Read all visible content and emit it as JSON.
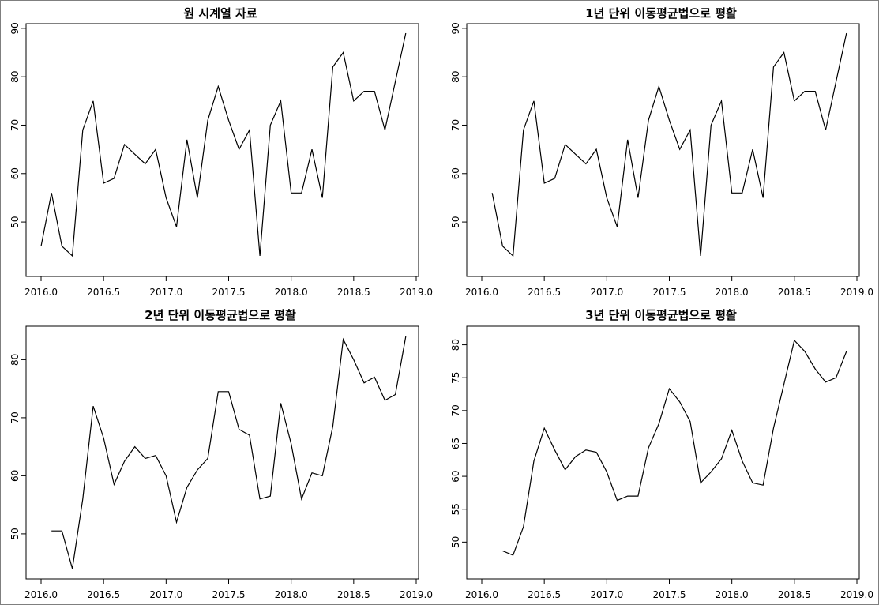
{
  "chart_data": [
    {
      "type": "line",
      "title": "원 시계열 자료",
      "x_start": 2016.0,
      "x_step": 0.08333,
      "values": [
        45,
        56,
        45,
        43,
        69,
        75,
        58,
        59,
        66,
        64,
        62,
        65,
        55,
        49,
        67,
        55,
        71,
        78,
        71,
        65,
        69,
        43,
        70,
        75,
        56,
        56,
        65,
        55,
        82,
        85,
        75,
        77,
        77,
        69,
        79,
        89
      ],
      "xlim": [
        2016.0,
        2019.0
      ],
      "ylim": [
        43,
        89
      ],
      "xticks": [
        2016.0,
        2016.5,
        2017.0,
        2017.5,
        2018.0,
        2018.5,
        2019.0
      ],
      "xtick_labels": [
        "2016.0",
        "2016.5",
        "2017.0",
        "2017.5",
        "2018.0",
        "2018.5",
        "2019.0"
      ],
      "yticks": [
        50,
        60,
        70,
        80,
        90
      ],
      "ytick_labels": [
        "50",
        "60",
        "70",
        "80",
        "90"
      ]
    },
    {
      "type": "line",
      "title": "1년 단위 이동평균법으로 평활",
      "x_start": 2016.08333,
      "x_step": 0.08333,
      "values": [
        56,
        45,
        43,
        69,
        75,
        58,
        59,
        66,
        64,
        62,
        65,
        55,
        49,
        67,
        55,
        71,
        78,
        71,
        65,
        69,
        43,
        70,
        75,
        56,
        56,
        65,
        55,
        82,
        85,
        75,
        77,
        77,
        69,
        79,
        89
      ],
      "xlim": [
        2016.0,
        2019.0
      ],
      "ylim": [
        43,
        89
      ],
      "xticks": [
        2016.0,
        2016.5,
        2017.0,
        2017.5,
        2018.0,
        2018.5,
        2019.0
      ],
      "xtick_labels": [
        "2016.0",
        "2016.5",
        "2017.0",
        "2017.5",
        "2018.0",
        "2018.5",
        "2019.0"
      ],
      "yticks": [
        50,
        60,
        70,
        80,
        90
      ],
      "ytick_labels": [
        "50",
        "60",
        "70",
        "80",
        "90"
      ]
    },
    {
      "type": "line",
      "title": "2년 단위 이동평균법으로 평활",
      "x_start": 2016.08333,
      "x_step": 0.08333,
      "values": [
        50.5,
        50.5,
        44,
        56,
        72,
        66.5,
        58.5,
        62.5,
        65,
        63,
        63.5,
        60,
        52,
        58,
        61,
        63,
        74.5,
        74.5,
        68,
        67,
        56,
        56.5,
        72.5,
        65.5,
        56,
        60.5,
        60,
        68.5,
        83.5,
        80,
        76,
        77,
        73,
        74,
        84
      ],
      "xlim": [
        2016.0,
        2019.0
      ],
      "ylim": [
        44,
        84
      ],
      "xticks": [
        2016.0,
        2016.5,
        2017.0,
        2017.5,
        2018.0,
        2018.5,
        2019.0
      ],
      "xtick_labels": [
        "2016.0",
        "2016.5",
        "2017.0",
        "2017.5",
        "2018.0",
        "2018.5",
        "2019.0"
      ],
      "yticks": [
        50,
        60,
        70,
        80
      ],
      "ytick_labels": [
        "50",
        "60",
        "70",
        "80"
      ]
    },
    {
      "type": "line",
      "title": "3년 단위 이동평균법으로 평활",
      "x_start": 2016.16667,
      "x_step": 0.08333,
      "values": [
        48.67,
        48,
        52.33,
        62.33,
        67.33,
        64,
        61,
        63,
        64,
        63.67,
        60.67,
        56.33,
        57,
        57,
        64.33,
        68,
        73.33,
        71.33,
        68.33,
        59,
        60.67,
        62.67,
        67,
        62.33,
        59,
        58.67,
        67.33,
        74,
        80.67,
        79,
        76.33,
        74.33,
        75,
        79
      ],
      "xlim": [
        2016.0,
        2019.0
      ],
      "ylim": [
        48,
        80.67
      ],
      "xticks": [
        2016.0,
        2016.5,
        2017.0,
        2017.5,
        2018.0,
        2018.5,
        2019.0
      ],
      "xtick_labels": [
        "2016.0",
        "2016.5",
        "2017.0",
        "2017.5",
        "2018.0",
        "2018.5",
        "2019.0"
      ],
      "yticks": [
        50,
        55,
        60,
        65,
        70,
        75,
        80
      ],
      "ytick_labels": [
        "50",
        "55",
        "60",
        "65",
        "70",
        "75",
        "80"
      ]
    }
  ]
}
